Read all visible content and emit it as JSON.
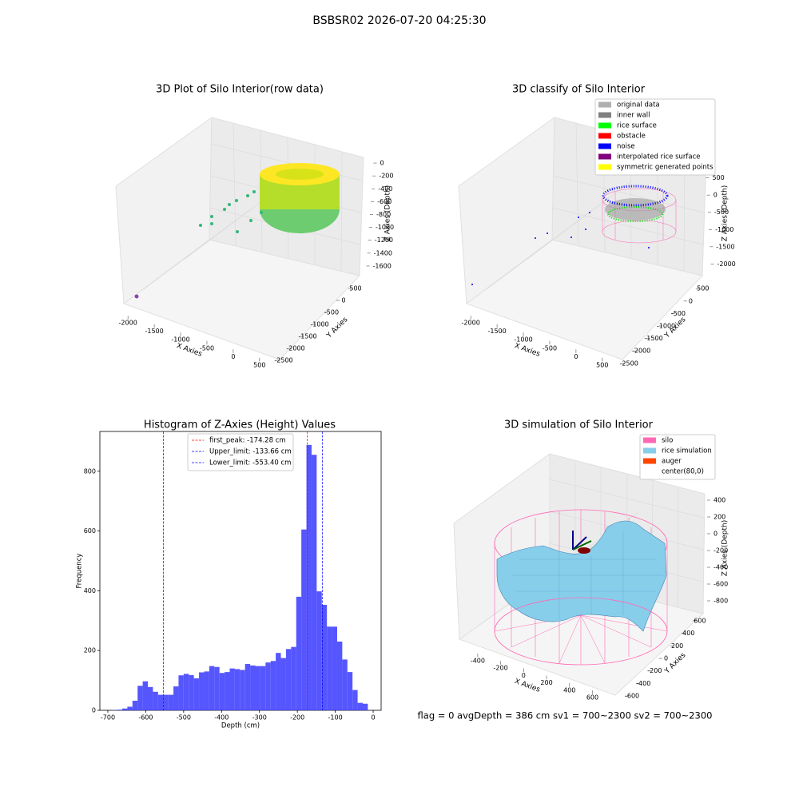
{
  "title": "BSBSR02 2026-07-20 04:25:30",
  "footer": "flag = 0     avgDepth = 386 cm  sv1 = 700~2300  sv2 = 700~2300",
  "chart_data": [
    {
      "type": "scatter3d",
      "title": "3D Plot of Silo Interior(row data)",
      "xlabel": "X Axies",
      "ylabel": "Y Axies",
      "zlabel": "Z Axies (Depth)",
      "xlim": [
        -2200,
        700
      ],
      "ylim": [
        -2700,
        700
      ],
      "zlim": [
        -1700,
        100
      ],
      "xticks": [
        -2000,
        -1500,
        -1000,
        -500,
        0,
        500
      ],
      "yticks": [
        500,
        0,
        -500,
        -1000,
        -1500,
        -2000,
        -2500
      ],
      "zticks": [
        0,
        -200,
        -400,
        -600,
        -800,
        -1000,
        -1200,
        -1400,
        -1600
      ]
    },
    {
      "type": "scatter3d",
      "title": "3D classify of Silo Interior",
      "xlabel": "X Axies",
      "ylabel": "Y Axies",
      "zlabel": "Z Axies (Depth)",
      "xlim": [
        -2200,
        700
      ],
      "ylim": [
        -2700,
        700
      ],
      "zlim": [
        -2200,
        700
      ],
      "xticks": [
        -2000,
        -1500,
        -1000,
        -500,
        0,
        500
      ],
      "yticks": [
        500,
        0,
        -500,
        -1000,
        -1500,
        -2000,
        -2500
      ],
      "zticks": [
        500,
        0,
        -500,
        -1000,
        -1500,
        -2000
      ],
      "legend": [
        {
          "name": "original data",
          "color": "#b0b0b0"
        },
        {
          "name": "inner wall",
          "color": "#808080"
        },
        {
          "name": "rice surface",
          "color": "#00ff00"
        },
        {
          "name": "obstacle",
          "color": "#ff0000"
        },
        {
          "name": "noise",
          "color": "#0000ff"
        },
        {
          "name": "interpolated rice surface",
          "color": "#800080"
        },
        {
          "name": "symmetric generated points",
          "color": "#ffff00"
        }
      ]
    },
    {
      "type": "histogram",
      "title": "Histogram of Z-Axies (Height) Values",
      "xlabel": "Depth (cm)",
      "ylabel": "Frequency",
      "color": "#4444ff",
      "bins": [
        -689,
        -675.5,
        -662,
        -648.5,
        -635,
        -621.5,
        -608,
        -594.5,
        -581,
        -567.5,
        -554,
        -540.5,
        -527,
        -513.5,
        -500,
        -486.5,
        -473,
        -459.5,
        -446,
        -432.5,
        -419,
        -405.5,
        -392,
        -378.5,
        -365,
        -351.5,
        -338,
        -324.5,
        -311,
        -297.5,
        -284,
        -270.5,
        -257,
        -243.5,
        -230,
        -216.5,
        -203,
        -189.5,
        -176,
        -162.5,
        -149,
        -135.5,
        -122,
        -108.5,
        -95,
        -81.5,
        -68,
        -54.5,
        -41,
        -27.5,
        -14
      ],
      "values": [
        1,
        2,
        6,
        12,
        32,
        82,
        97,
        78,
        62,
        52,
        52,
        52,
        80,
        117,
        122,
        118,
        107,
        127,
        130,
        148,
        145,
        125,
        128,
        140,
        138,
        135,
        155,
        150,
        148,
        148,
        160,
        165,
        192,
        175,
        205,
        212,
        380,
        605,
        888,
        855,
        398,
        353,
        280,
        280,
        230,
        170,
        128,
        68,
        25,
        22
      ],
      "xlim": [
        -721,
        21
      ],
      "ylim": [
        0,
        933
      ],
      "xticks": [
        -700,
        -600,
        -500,
        -400,
        -300,
        -200,
        -100,
        0
      ],
      "yticks": [
        0,
        200,
        400,
        600,
        800
      ],
      "vlines": [
        {
          "label": "first_peak: -174.28 cm",
          "value": -174.28,
          "color": "#ff0000"
        },
        {
          "label": "Upper_limit: -133.66 cm",
          "value": -133.66,
          "color": "#0000ff"
        },
        {
          "label": "Lower_limit: -553.40 cm",
          "value": -553.4,
          "color": "#0000ff"
        }
      ]
    },
    {
      "type": "surface3d",
      "title": "3D simulation of Silo Interior",
      "xlabel": "X Axies",
      "ylabel": "Y Axies",
      "zlabel": "Z Axies (Depth)",
      "xlim": [
        -650,
        750
      ],
      "ylim": [
        -700,
        700
      ],
      "zlim": [
        -900,
        500
      ],
      "xticks": [
        -400,
        -200,
        0,
        200,
        400,
        600
      ],
      "yticks": [
        -600,
        -400,
        -200,
        0,
        200,
        400,
        600
      ],
      "zticks": [
        400,
        200,
        0,
        -200,
        -400,
        -600,
        -800
      ],
      "legend": [
        {
          "name": "silo",
          "color": "#ff69b4"
        },
        {
          "name": "rice simulation",
          "color": "#87ceeb"
        },
        {
          "name": "auger",
          "color": "#ff4500"
        },
        {
          "name": "center(80,0)",
          "color": "#ffffff"
        }
      ]
    }
  ]
}
